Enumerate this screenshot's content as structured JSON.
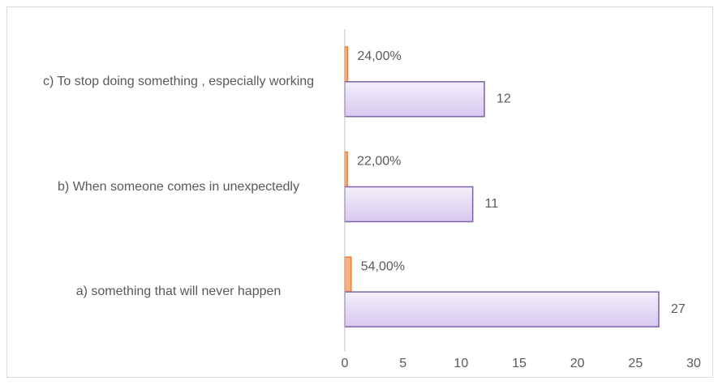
{
  "chart_data": {
    "type": "bar",
    "orientation": "horizontal",
    "categories": [
      "a) something that will never happen",
      "b) When someone comes in unexpectedly",
      "c) To stop doing something , especially working"
    ],
    "series": [
      {
        "color": "#f4b183",
        "values": [
          0.54,
          0.22,
          0.24
        ],
        "value_labels": [
          "54,00%",
          "22,00%",
          "24,00%"
        ]
      },
      {
        "color": "#e3d9f3",
        "values": [
          27,
          11,
          12
        ]
      }
    ],
    "xlim": [
      0,
      30
    ],
    "xticks": [
      0,
      5,
      10,
      15,
      20,
      25,
      30
    ],
    "grid": false
  }
}
